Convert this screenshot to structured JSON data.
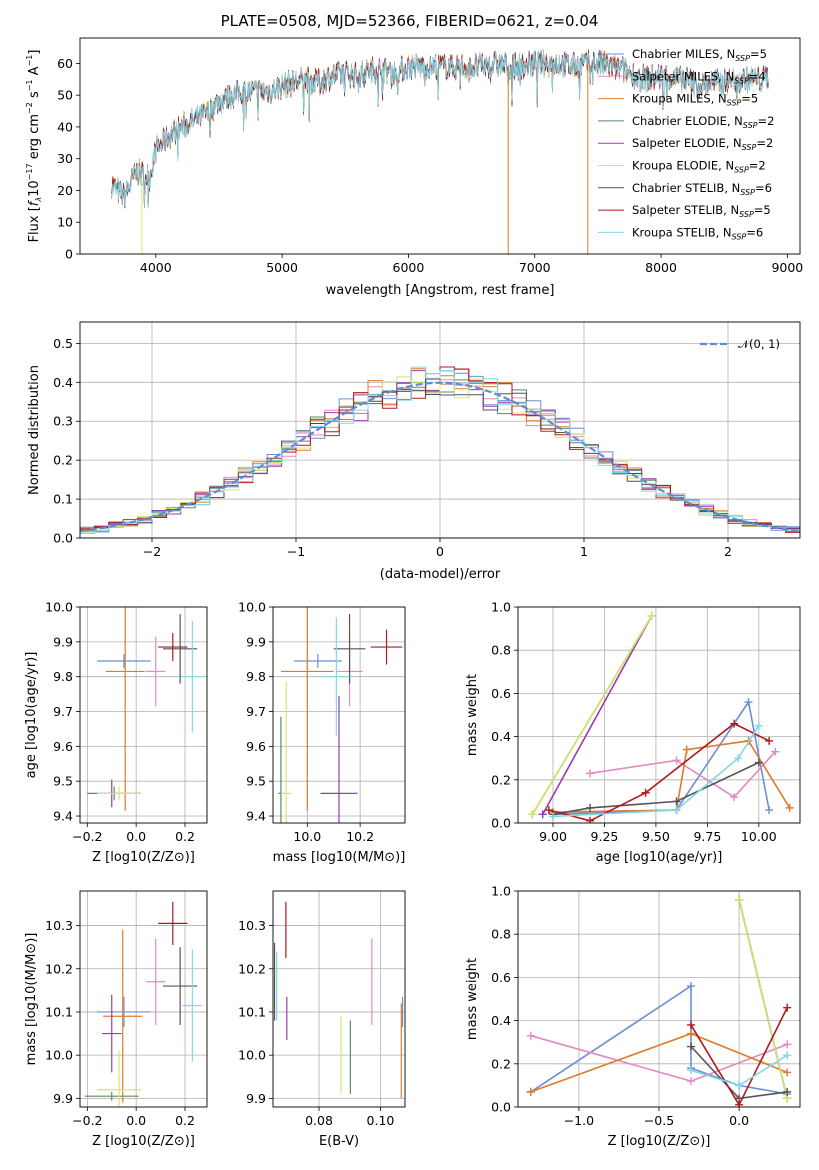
{
  "figure": {
    "title": "PLATE=0508, MJD=52366, FIBERID=0621, z=0.04"
  },
  "colors": {
    "chabrier_miles": "#6a8fd8",
    "salpeter_miles": "#e48ac0",
    "kroupa_miles": "#e07b28",
    "chabrier_elodie": "#5a8a6a",
    "salpeter_elodie": "#9a3ab0",
    "kroupa_elodie": "#d4e868",
    "chabrier_stelib": "#555555",
    "salpeter_stelib": "#b01a1a",
    "kroupa_stelib": "#7fd8e8",
    "gauss": "#5b8fd8"
  },
  "chart_data": [
    {
      "type": "line",
      "name": "spectrum",
      "xlabel": "wavelength [Angstrom, rest frame]",
      "ylabel": "Flux [f_λ 10^-17 erg cm^-2 s^-1 A^-1]",
      "xlim": [
        3400,
        9100
      ],
      "ylim": [
        0,
        68
      ],
      "xticks": [
        4000,
        5000,
        6000,
        7000,
        8000,
        9000
      ],
      "yticks": [
        0,
        10,
        20,
        30,
        40,
        50,
        60
      ],
      "legend": {
        "position": "right",
        "entries": [
          {
            "key": "chabrier_miles",
            "label": "Chabrier MILES, N",
            "sub": "SSP",
            "suffix": "=5"
          },
          {
            "key": "salpeter_miles",
            "label": "Salpeter MILES, N",
            "sub": "SSP",
            "suffix": "=4"
          },
          {
            "key": "kroupa_miles",
            "label": "Kroupa MILES, N",
            "sub": "SSP",
            "suffix": "=5"
          },
          {
            "key": "chabrier_elodie",
            "label": "Chabrier ELODIE, N",
            "sub": "SSP",
            "suffix": "=2"
          },
          {
            "key": "salpeter_elodie",
            "label": "Salpeter ELODIE, N",
            "sub": "SSP",
            "suffix": "=2"
          },
          {
            "key": "kroupa_elodie",
            "label": "Kroupa ELODIE, N",
            "sub": "SSP",
            "suffix": "=2"
          },
          {
            "key": "chabrier_stelib",
            "label": "Chabrier STELIB, N",
            "sub": "SSP",
            "suffix": "=6"
          },
          {
            "key": "salpeter_stelib",
            "label": "Salpeter STELIB, N",
            "sub": "SSP",
            "suffix": "=5"
          },
          {
            "key": "kroupa_stelib",
            "label": "Kroupa STELIB, N",
            "sub": "SSP",
            "suffix": "=6"
          }
        ]
      },
      "continuum": [
        [
          3650,
          22
        ],
        [
          3750,
          18
        ],
        [
          3850,
          26
        ],
        [
          3950,
          24
        ],
        [
          4000,
          33
        ],
        [
          4100,
          37
        ],
        [
          4200,
          40
        ],
        [
          4300,
          42
        ],
        [
          4400,
          44
        ],
        [
          4500,
          48
        ],
        [
          4600,
          50
        ],
        [
          4700,
          51
        ],
        [
          4800,
          51
        ],
        [
          4900,
          51
        ],
        [
          5000,
          53
        ],
        [
          5100,
          54
        ],
        [
          5200,
          55
        ],
        [
          5300,
          54
        ],
        [
          5400,
          56
        ],
        [
          5500,
          57
        ],
        [
          5600,
          56
        ],
        [
          5700,
          58
        ],
        [
          5800,
          58
        ],
        [
          5900,
          57
        ],
        [
          6000,
          59
        ],
        [
          6100,
          59
        ],
        [
          6200,
          59
        ],
        [
          6300,
          59
        ],
        [
          6400,
          59
        ],
        [
          6500,
          59
        ],
        [
          6600,
          59
        ],
        [
          6700,
          60
        ],
        [
          6800,
          59
        ],
        [
          6900,
          59
        ],
        [
          7000,
          60
        ],
        [
          7100,
          60
        ],
        [
          7200,
          60
        ],
        [
          7300,
          59
        ],
        [
          7400,
          60
        ],
        [
          7500,
          60
        ],
        [
          7600,
          59
        ],
        [
          7700,
          58
        ],
        [
          7800,
          56
        ],
        [
          7900,
          55
        ],
        [
          8000,
          56
        ],
        [
          8100,
          55
        ],
        [
          8200,
          55
        ],
        [
          8300,
          53
        ],
        [
          8400,
          54
        ],
        [
          8500,
          54
        ],
        [
          8600,
          55
        ],
        [
          8700,
          55
        ],
        [
          8800,
          55
        ],
        [
          8850,
          56
        ]
      ],
      "spikes": [
        {
          "x": 3890,
          "key": "kroupa_elodie"
        },
        {
          "x": 6790,
          "key": "kroupa_miles"
        },
        {
          "x": 7420,
          "key": "kroupa_miles"
        }
      ]
    },
    {
      "type": "histogram",
      "name": "residuals",
      "xlabel": "(data-model)/error",
      "ylabel": "Normed distribution",
      "xlim": [
        -2.5,
        2.5
      ],
      "ylim": [
        0,
        0.555
      ],
      "xticks": [
        -2,
        -1,
        0,
        1,
        2
      ],
      "yticks": [
        0,
        0.1,
        0.2,
        0.3,
        0.4,
        0.5
      ],
      "legend": {
        "position": "top-right",
        "label": "𝒩(0, 1)"
      }
    },
    {
      "type": "scatter",
      "name": "age-vs-Z",
      "xlabel": "Z [log10(Z/Z⊙)]",
      "ylabel": "age  [log10(age/yr)]",
      "xlim": [
        -0.23,
        0.29
      ],
      "ylim": [
        9.38,
        10.0
      ],
      "xticks": [
        -0.2,
        0.0,
        0.2
      ],
      "yticks": [
        9.4,
        9.5,
        9.6,
        9.7,
        9.8,
        9.9,
        10.0
      ],
      "points": [
        {
          "key": "chabrier_miles",
          "x": -0.05,
          "y": 9.845,
          "ex": 0.11,
          "ey": 0.02
        },
        {
          "key": "salpeter_miles",
          "x": 0.08,
          "y": 9.815,
          "ex": 0.04,
          "ey": 0.1
        },
        {
          "key": "kroupa_miles",
          "x": -0.045,
          "y": 9.815,
          "ex": 0.08,
          "ey": 0.4
        },
        {
          "key": "chabrier_elodie",
          "x": -0.09,
          "y": 9.465,
          "ex": 0.11,
          "ey": 0.02
        },
        {
          "key": "salpeter_elodie",
          "x": -0.1,
          "y": 9.465,
          "ex": 0.01,
          "ey": 0.04
        },
        {
          "key": "kroupa_elodie",
          "x": -0.07,
          "y": 9.465,
          "ex": 0.09,
          "ey": 0.02
        },
        {
          "key": "chabrier_stelib",
          "x": 0.18,
          "y": 9.88,
          "ex": 0.07,
          "ey": 0.1
        },
        {
          "key": "salpeter_stelib",
          "x": 0.15,
          "y": 9.885,
          "ex": 0.06,
          "ey": 0.04
        },
        {
          "key": "kroupa_stelib",
          "x": 0.23,
          "y": 9.8,
          "ex": 0.04,
          "ey": 0.16
        }
      ]
    },
    {
      "type": "scatter",
      "name": "age-vs-mass",
      "xlabel": "mass [log10(M/M⊙)]",
      "ylabel": "",
      "xlim": [
        9.87,
        10.37
      ],
      "ylim": [
        9.38,
        10.0
      ],
      "xticks": [
        10.0,
        10.2
      ],
      "yticks": [
        9.4,
        9.5,
        9.6,
        9.7,
        9.8,
        9.9,
        10.0
      ],
      "points": [
        {
          "key": "chabrier_miles",
          "x": 10.04,
          "y": 9.845,
          "ex": 0.09,
          "ey": 0.02
        },
        {
          "key": "salpeter_miles",
          "x": 10.16,
          "y": 9.815,
          "ex": 0.05,
          "ey": 0.1
        },
        {
          "key": "kroupa_miles",
          "x": 10.0,
          "y": 9.815,
          "ex": 0.1,
          "ey": 0.4
        },
        {
          "key": "chabrier_elodie",
          "x": 9.9,
          "y": 9.465,
          "ex": 0.01,
          "ey": 0.22
        },
        {
          "key": "salpeter_elodie",
          "x": 10.12,
          "y": 9.465,
          "ex": 0.07,
          "ey": 0.28
        },
        {
          "key": "kroupa_elodie",
          "x": 9.92,
          "y": 9.465,
          "ex": 0.02,
          "ey": 0.32
        },
        {
          "key": "chabrier_stelib",
          "x": 10.16,
          "y": 9.88,
          "ex": 0.06,
          "ey": 0.1
        },
        {
          "key": "salpeter_stelib",
          "x": 10.3,
          "y": 9.885,
          "ex": 0.06,
          "ey": 0.05
        },
        {
          "key": "kroupa_stelib",
          "x": 10.11,
          "y": 9.8,
          "ex": 0.05,
          "ey": 0.17
        }
      ]
    },
    {
      "type": "line",
      "name": "massweight-vs-age",
      "xlabel": "age  [log10(age/yr)]",
      "ylabel": "mass weight",
      "xlim": [
        8.83,
        10.2
      ],
      "ylim": [
        0,
        1.0
      ],
      "xticks": [
        9.0,
        9.25,
        9.5,
        9.75,
        10.0
      ],
      "yticks": [
        0,
        0.2,
        0.4,
        0.6,
        0.8,
        1.0
      ],
      "series": [
        {
          "key": "chabrier_miles",
          "x": [
            9.0,
            9.6,
            9.95,
            10.05
          ],
          "y": [
            0.04,
            0.06,
            0.56,
            0.06
          ]
        },
        {
          "key": "salpeter_miles",
          "x": [
            9.18,
            9.6,
            9.88,
            10.08
          ],
          "y": [
            0.23,
            0.29,
            0.12,
            0.33
          ]
        },
        {
          "key": "kroupa_miles",
          "x": [
            9.0,
            9.6,
            9.65,
            9.95,
            10.15
          ],
          "y": [
            0.05,
            0.06,
            0.34,
            0.38,
            0.07
          ]
        },
        {
          "key": "chabrier_elodie",
          "x": [
            8.9,
            9.48
          ],
          "y": [
            0.04,
            0.96
          ]
        },
        {
          "key": "salpeter_elodie",
          "x": [
            8.95,
            9.48
          ],
          "y": [
            0.04,
            0.96
          ]
        },
        {
          "key": "kroupa_elodie",
          "x": [
            8.9,
            9.48
          ],
          "y": [
            0.04,
            0.96
          ]
        },
        {
          "key": "chabrier_stelib",
          "x": [
            9.0,
            9.18,
            9.6,
            10.0
          ],
          "y": [
            0.04,
            0.07,
            0.1,
            0.28
          ]
        },
        {
          "key": "salpeter_stelib",
          "x": [
            8.98,
            9.18,
            9.45,
            9.88,
            10.05
          ],
          "y": [
            0.06,
            0.01,
            0.14,
            0.46,
            0.38
          ]
        },
        {
          "key": "kroupa_stelib",
          "x": [
            9.0,
            9.6,
            9.9,
            10.0
          ],
          "y": [
            0.03,
            0.06,
            0.3,
            0.45
          ]
        }
      ]
    },
    {
      "type": "scatter",
      "name": "mass-vs-Z",
      "xlabel": "Z [log10(Z/Z⊙)]",
      "ylabel": "mass [log10(M/M⊙)]",
      "xlim": [
        -0.23,
        0.29
      ],
      "ylim": [
        9.88,
        10.38
      ],
      "xticks": [
        -0.2,
        0.0,
        0.2
      ],
      "yticks": [
        9.9,
        10.0,
        10.1,
        10.2,
        10.3
      ],
      "points": [
        {
          "key": "chabrier_miles",
          "x": -0.05,
          "y": 10.1,
          "ex": 0.11,
          "ey": 0.035
        },
        {
          "key": "salpeter_miles",
          "x": 0.08,
          "y": 10.17,
          "ex": 0.04,
          "ey": 0.1
        },
        {
          "key": "kroupa_miles",
          "x": -0.055,
          "y": 10.09,
          "ex": 0.08,
          "ey": 0.2
        },
        {
          "key": "chabrier_elodie",
          "x": -0.1,
          "y": 9.905,
          "ex": 0.11,
          "ey": 0.01
        },
        {
          "key": "salpeter_elodie",
          "x": -0.1,
          "y": 10.05,
          "ex": 0.04,
          "ey": 0.09
        },
        {
          "key": "kroupa_elodie",
          "x": -0.07,
          "y": 9.92,
          "ex": 0.09,
          "ey": 0.09
        },
        {
          "key": "chabrier_stelib",
          "x": 0.18,
          "y": 10.16,
          "ex": 0.07,
          "ey": 0.09
        },
        {
          "key": "salpeter_stelib",
          "x": 0.15,
          "y": 10.305,
          "ex": 0.06,
          "ey": 0.05
        },
        {
          "key": "kroupa_stelib",
          "x": 0.23,
          "y": 10.115,
          "ex": 0.04,
          "ey": 0.13
        }
      ]
    },
    {
      "type": "scatter",
      "name": "mass-vs-ebv",
      "xlabel": "E(B-V)",
      "ylabel": "",
      "xlim": [
        0.065,
        0.108
      ],
      "ylim": [
        9.88,
        10.38
      ],
      "xticks": [
        0.08,
        0.1
      ],
      "yticks": [
        9.9,
        10.0,
        10.1,
        10.2,
        10.3
      ],
      "points": [
        {
          "key": "chabrier_miles",
          "x": 0.1072,
          "y": 10.1,
          "ey": 0.035
        },
        {
          "key": "salpeter_miles",
          "x": 0.0972,
          "y": 10.17,
          "ey": 0.1
        },
        {
          "key": "kroupa_miles",
          "x": 0.1068,
          "y": 10.01,
          "ey": 0.11
        },
        {
          "key": "chabrier_elodie",
          "x": 0.0902,
          "y": 9.995,
          "ey": 0.085
        },
        {
          "key": "salpeter_elodie",
          "x": 0.0695,
          "y": 10.085,
          "ey": 0.05
        },
        {
          "key": "kroupa_elodie",
          "x": 0.0872,
          "y": 10.0,
          "ey": 0.09
        },
        {
          "key": "chabrier_stelib",
          "x": 0.0655,
          "y": 10.17,
          "ey": 0.09
        },
        {
          "key": "salpeter_stelib",
          "x": 0.0692,
          "y": 10.29,
          "ey": 0.065
        },
        {
          "key": "kroupa_stelib",
          "x": 0.0662,
          "y": 10.16,
          "ey": 0.08
        }
      ]
    },
    {
      "type": "line",
      "name": "massweight-vs-Z",
      "xlabel": "Z [log10(Z/Z⊙)]",
      "ylabel": "mass weight",
      "xlim": [
        -1.38,
        0.38
      ],
      "ylim": [
        0,
        1.0
      ],
      "xticks": [
        -1.0,
        -0.5,
        0.0
      ],
      "yticks": [
        0,
        0.2,
        0.4,
        0.6,
        0.8,
        1.0
      ],
      "series": [
        {
          "key": "chabrier_miles",
          "x": [
            -1.3,
            -0.3,
            -0.3,
            0.0,
            0.3
          ],
          "y": [
            0.07,
            0.56,
            0.18,
            0.1,
            0.06
          ]
        },
        {
          "key": "salpeter_miles",
          "x": [
            -1.3,
            -0.3,
            0.3
          ],
          "y": [
            0.33,
            0.12,
            0.29
          ]
        },
        {
          "key": "kroupa_miles",
          "x": [
            -1.3,
            -0.3,
            0.3
          ],
          "y": [
            0.07,
            0.34,
            0.16
          ]
        },
        {
          "key": "chabrier_elodie",
          "x": [
            0.0,
            0.3
          ],
          "y": [
            0.96,
            0.04
          ]
        },
        {
          "key": "salpeter_elodie",
          "x": [
            0.0,
            0.3
          ],
          "y": [
            0.96,
            0.04
          ]
        },
        {
          "key": "kroupa_elodie",
          "x": [
            0.0,
            0.3
          ],
          "y": [
            0.96,
            0.04
          ]
        },
        {
          "key": "chabrier_stelib",
          "x": [
            -0.3,
            0.0,
            0.3
          ],
          "y": [
            0.28,
            0.04,
            0.07
          ]
        },
        {
          "key": "salpeter_stelib",
          "x": [
            -0.3,
            0.0,
            0.3
          ],
          "y": [
            0.38,
            0.01,
            0.46
          ]
        },
        {
          "key": "kroupa_stelib",
          "x": [
            -0.3,
            0.0,
            0.3
          ],
          "y": [
            0.17,
            0.1,
            0.24
          ]
        }
      ]
    }
  ]
}
